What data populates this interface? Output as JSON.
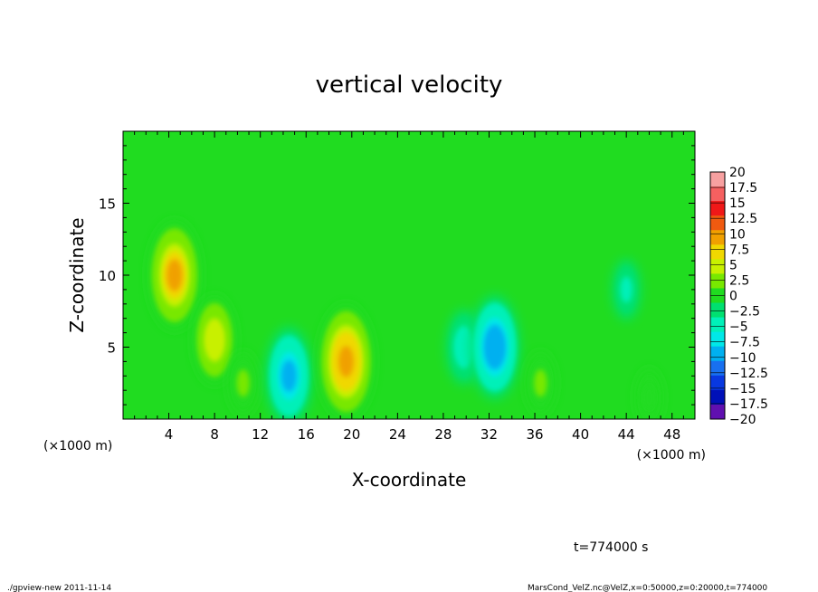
{
  "chart_data": {
    "type": "heatmap",
    "title": "vertical velocity",
    "xlabel": "X-coordinate",
    "ylabel": "Z-coordinate",
    "x_unit_left": "(×1000 m)",
    "x_unit_right": "(×1000 m)",
    "xlim": [
      0,
      50
    ],
    "ylim": [
      0,
      20
    ],
    "x_ticks": [
      4,
      8,
      12,
      16,
      20,
      24,
      28,
      32,
      36,
      40,
      44,
      48
    ],
    "y_ticks": [
      5,
      10,
      15
    ],
    "time_label": "t=774000 s",
    "colorbar": {
      "levels": [
        20,
        17.5,
        15,
        12.5,
        10,
        7.5,
        5,
        2.5,
        0,
        -2.5,
        -5,
        -7.5,
        -10,
        -12.5,
        -15,
        -17.5,
        -20
      ],
      "labels": [
        "20",
        "17.5",
        "15",
        "12.5",
        "10",
        "7.5",
        "5",
        "2.5",
        "0",
        "−2.5",
        "−5",
        "−7.5",
        "−10",
        "−12.5",
        "−15",
        "−17.5",
        "−20"
      ],
      "colors": [
        "#f7a0a0",
        "#f56060",
        "#f01818",
        "#f05a10",
        "#f0a000",
        "#f0d800",
        "#c8f000",
        "#78e800",
        "#20dc20",
        "#00e070",
        "#00f0b8",
        "#00e8e8",
        "#00b0f0",
        "#1870f0",
        "#0838e0",
        "#0010b8",
        "#6010b0"
      ]
    },
    "features": [
      {
        "x": 4.5,
        "z": 10.0,
        "w": 12.0
      },
      {
        "x": 8.0,
        "z": 5.5,
        "w": 8.5
      },
      {
        "x": 10.5,
        "z": 2.5,
        "w": 4.0
      },
      {
        "x": 14.5,
        "z": 3.0,
        "w": -10.0
      },
      {
        "x": 19.5,
        "z": 4.0,
        "w": 13.0
      },
      {
        "x": 29.8,
        "z": 5.0,
        "w": -6.0
      },
      {
        "x": 32.5,
        "z": 5.0,
        "w": -11.0
      },
      {
        "x": 36.5,
        "z": 2.5,
        "w": 4.0
      },
      {
        "x": 46.0,
        "z": 1.5,
        "w": 3.0
      },
      {
        "x": 44.0,
        "z": 9.0,
        "w": -3.5
      }
    ]
  },
  "footer": {
    "left": "./gpview-new 2011-11-14",
    "right": "MarsCond_VelZ.nc@VelZ,x=0:50000,z=0:20000,t=774000"
  }
}
